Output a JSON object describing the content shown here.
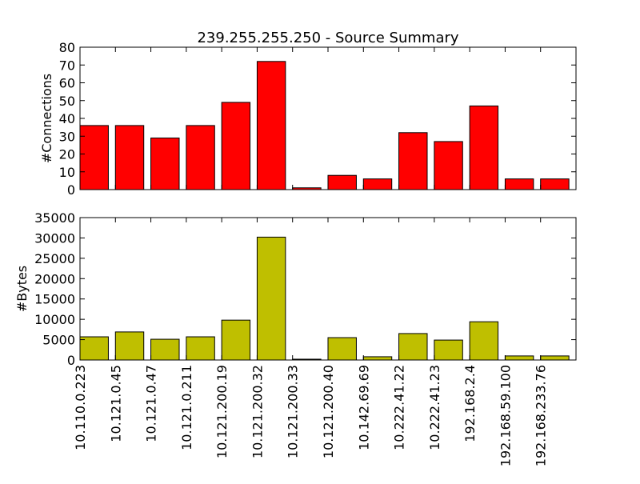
{
  "chart_data": [
    {
      "type": "bar",
      "title": "239.255.255.250 - Source Summary",
      "ylabel": "#Connections",
      "ylim": [
        0,
        80
      ],
      "yticks": [
        0,
        10,
        20,
        30,
        40,
        50,
        60,
        70,
        80
      ],
      "bar_color": "#ff0000",
      "categories": [
        "10.110.0.223",
        "10.121.0.45",
        "10.121.0.47",
        "10.121.0.211",
        "10.121.200.19",
        "10.121.200.32",
        "10.121.200.33",
        "10.121.200.40",
        "10.142.69.69",
        "10.222.41.22",
        "10.222.41.23",
        "192.168.2.4",
        "192.168.59.100",
        "192.168.233.76"
      ],
      "values": [
        36,
        36,
        29,
        36,
        49,
        72,
        1,
        8,
        6,
        32,
        27,
        47,
        6,
        6
      ]
    },
    {
      "type": "bar",
      "ylabel": "#Bytes",
      "ylim": [
        0,
        35000
      ],
      "yticks": [
        0,
        5000,
        10000,
        15000,
        20000,
        25000,
        30000,
        35000
      ],
      "bar_color": "#bfbf00",
      "categories": [
        "10.110.0.223",
        "10.121.0.45",
        "10.121.0.47",
        "10.121.0.211",
        "10.121.200.19",
        "10.121.200.32",
        "10.121.200.33",
        "10.121.200.40",
        "10.142.69.69",
        "10.222.41.22",
        "10.222.41.23",
        "192.168.2.4",
        "192.168.59.100",
        "192.168.233.76"
      ],
      "values": [
        5700,
        6900,
        5100,
        5700,
        9800,
        30200,
        200,
        5500,
        800,
        6500,
        4900,
        9400,
        1000,
        1000
      ]
    }
  ]
}
